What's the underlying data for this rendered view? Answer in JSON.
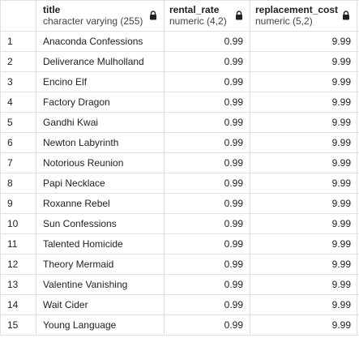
{
  "columns": [
    {
      "name": "",
      "type": ""
    },
    {
      "name": "title",
      "type": "character varying (255)",
      "icon": "lock-icon"
    },
    {
      "name": "rental_rate",
      "type": "numeric (4,2)",
      "icon": "lock-icon"
    },
    {
      "name": "replacement_cost",
      "type": "numeric (5,2)",
      "icon": "lock-icon"
    }
  ],
  "rows": [
    {
      "num": "1",
      "title": "Anaconda Confessions",
      "rental_rate": "0.99",
      "replacement_cost": "9.99"
    },
    {
      "num": "2",
      "title": "Deliverance Mulholland",
      "rental_rate": "0.99",
      "replacement_cost": "9.99"
    },
    {
      "num": "3",
      "title": "Encino Elf",
      "rental_rate": "0.99",
      "replacement_cost": "9.99"
    },
    {
      "num": "4",
      "title": "Factory Dragon",
      "rental_rate": "0.99",
      "replacement_cost": "9.99"
    },
    {
      "num": "5",
      "title": "Gandhi Kwai",
      "rental_rate": "0.99",
      "replacement_cost": "9.99"
    },
    {
      "num": "6",
      "title": "Newton Labyrinth",
      "rental_rate": "0.99",
      "replacement_cost": "9.99"
    },
    {
      "num": "7",
      "title": "Notorious Reunion",
      "rental_rate": "0.99",
      "replacement_cost": "9.99"
    },
    {
      "num": "8",
      "title": "Papi Necklace",
      "rental_rate": "0.99",
      "replacement_cost": "9.99"
    },
    {
      "num": "9",
      "title": "Roxanne Rebel",
      "rental_rate": "0.99",
      "replacement_cost": "9.99"
    },
    {
      "num": "10",
      "title": "Sun Confessions",
      "rental_rate": "0.99",
      "replacement_cost": "9.99"
    },
    {
      "num": "11",
      "title": "Talented Homicide",
      "rental_rate": "0.99",
      "replacement_cost": "9.99"
    },
    {
      "num": "12",
      "title": "Theory Mermaid",
      "rental_rate": "0.99",
      "replacement_cost": "9.99"
    },
    {
      "num": "13",
      "title": "Valentine Vanishing",
      "rental_rate": "0.99",
      "replacement_cost": "9.99"
    },
    {
      "num": "14",
      "title": "Wait Cider",
      "rental_rate": "0.99",
      "replacement_cost": "9.99"
    },
    {
      "num": "15",
      "title": "Young Language",
      "rental_rate": "0.99",
      "replacement_cost": "9.99"
    }
  ],
  "colors": {
    "border": "#dee2e6",
    "text": "#222222"
  }
}
